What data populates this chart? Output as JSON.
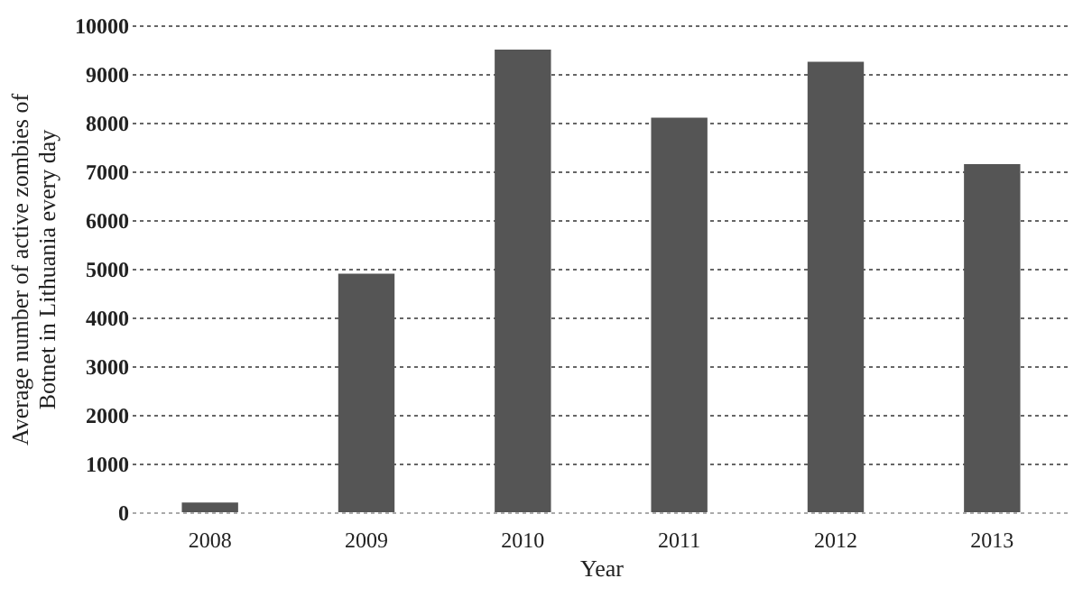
{
  "chart_data": {
    "type": "bar",
    "xlabel": "Year",
    "ylabel": "Average number of active zombies of\nBotnet in Lithuania every day",
    "categories": [
      "2008",
      "2009",
      "2010",
      "2011",
      "2012",
      "2013"
    ],
    "values": [
      200,
      4900,
      9500,
      8100,
      9250,
      7150
    ],
    "color": "#555555",
    "ylim": [
      0,
      10000
    ],
    "yticks": [
      0,
      1000,
      2000,
      3000,
      4000,
      5000,
      6000,
      7000,
      8000,
      9000,
      10000
    ],
    "grid": "y"
  }
}
